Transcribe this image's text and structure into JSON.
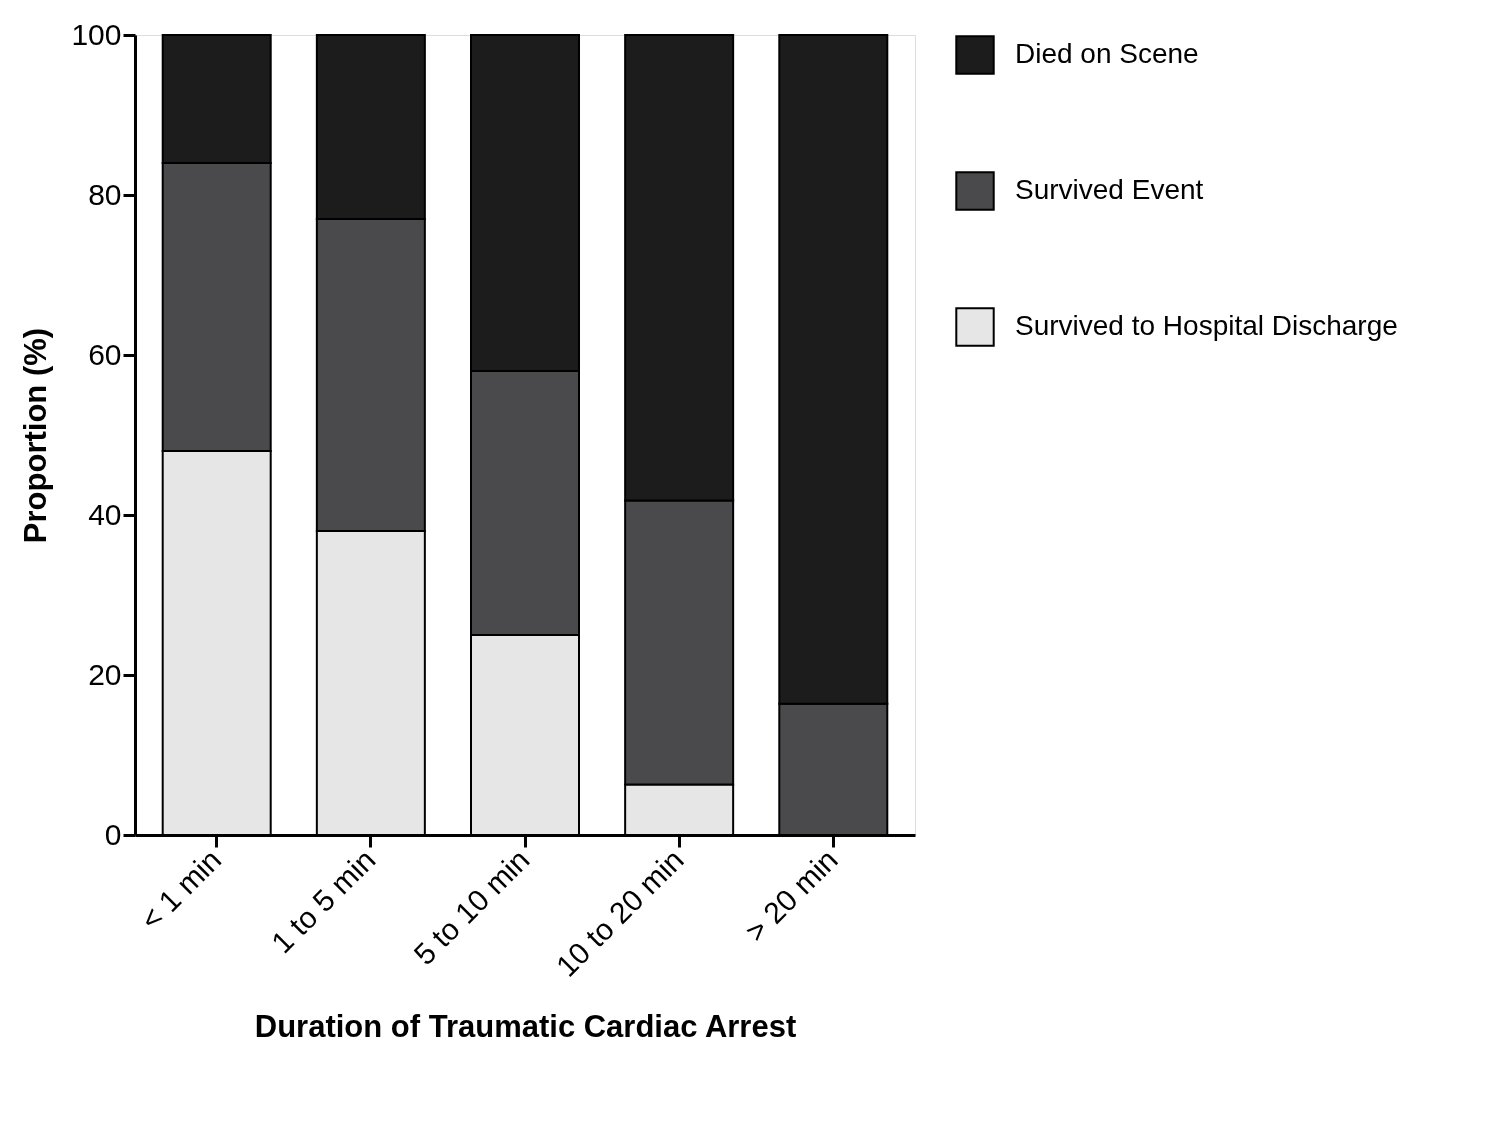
{
  "chart_data": {
    "type": "bar",
    "stacked": true,
    "xlabel": "Duration of Traumatic Cardiac Arrest",
    "ylabel": "Proportion (%)",
    "categories": [
      "< 1 min",
      "1 to 5 min",
      "5 to 10 min",
      "10 to 20 min",
      "> 20 min"
    ],
    "series": [
      {
        "name": "Survived to Hospital Discharge",
        "color": "#e6e6e6",
        "values": [
          48,
          38,
          25,
          6.3,
          0
        ]
      },
      {
        "name": "Survived Event",
        "color": "#4a494c",
        "values": [
          36,
          39,
          33,
          35.5,
          16.4
        ]
      },
      {
        "name": "Died on Scene",
        "color": "#1c1c1c",
        "values": [
          16,
          23,
          42,
          58.2,
          83.6
        ]
      }
    ],
    "ylim": [
      0,
      100
    ],
    "yticks": [
      0,
      20,
      40,
      60,
      80,
      100
    ],
    "grid": false,
    "legend": "right"
  }
}
